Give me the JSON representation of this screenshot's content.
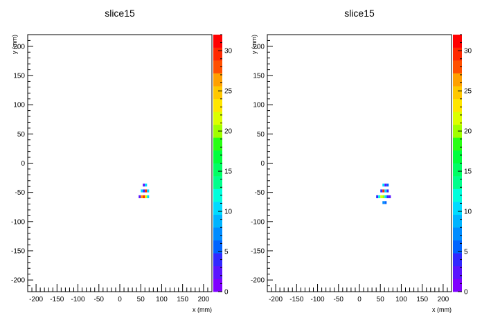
{
  "chart_data": [
    {
      "type": "heatmap",
      "title": "slice15",
      "xlabel": "x (mm)",
      "ylabel": "y (mm)",
      "xlim": [
        -220,
        220
      ],
      "ylim": [
        -220,
        220
      ],
      "x_ticks": [
        -200,
        -150,
        -100,
        -50,
        0,
        50,
        100,
        150,
        200
      ],
      "y_ticks": [
        -200,
        -150,
        -100,
        -50,
        0,
        50,
        100,
        150,
        200
      ],
      "colorbar": {
        "min": 0,
        "max": 32,
        "ticks": [
          0,
          5,
          10,
          15,
          20,
          25,
          30
        ]
      },
      "cell_size": 5,
      "cells": [
        {
          "x": 57.5,
          "y": -37.5,
          "v": 3
        },
        {
          "x": 62.5,
          "y": -37.5,
          "v": 10
        },
        {
          "x": 52.5,
          "y": -47.5,
          "v": 10
        },
        {
          "x": 57.5,
          "y": -47.5,
          "v": 4
        },
        {
          "x": 62.5,
          "y": -47.5,
          "v": 29
        },
        {
          "x": 67.5,
          "y": -47.5,
          "v": 11
        },
        {
          "x": 47.5,
          "y": -57.5,
          "v": 3
        },
        {
          "x": 52.5,
          "y": -57.5,
          "v": 26
        },
        {
          "x": 57.5,
          "y": -57.5,
          "v": 29
        },
        {
          "x": 62.5,
          "y": -57.5,
          "v": 21
        },
        {
          "x": 67.5,
          "y": -57.5,
          "v": 11
        }
      ]
    },
    {
      "type": "heatmap",
      "title": "slice15",
      "xlabel": "x (mm)",
      "ylabel": "y (mm)",
      "xlim": [
        -220,
        220
      ],
      "ylim": [
        -220,
        220
      ],
      "x_ticks": [
        -200,
        -150,
        -100,
        -50,
        0,
        50,
        100,
        150,
        200
      ],
      "y_ticks": [
        -200,
        -150,
        -100,
        -50,
        0,
        50,
        100,
        150,
        200
      ],
      "colorbar": {
        "min": 0,
        "max": 32,
        "ticks": [
          0,
          5,
          10,
          15,
          20,
          25,
          30
        ]
      },
      "cell_size": 5,
      "cells": [
        {
          "x": 57.5,
          "y": -37.5,
          "v": 10
        },
        {
          "x": 62.5,
          "y": -37.5,
          "v": 3
        },
        {
          "x": 67.5,
          "y": -37.5,
          "v": 5
        },
        {
          "x": 52.5,
          "y": -47.5,
          "v": 4
        },
        {
          "x": 57.5,
          "y": -47.5,
          "v": 29
        },
        {
          "x": 62.5,
          "y": -47.5,
          "v": 11
        },
        {
          "x": 67.5,
          "y": -47.5,
          "v": 4
        },
        {
          "x": 42.5,
          "y": -57.5,
          "v": 4
        },
        {
          "x": 47.5,
          "y": -57.5,
          "v": 12
        },
        {
          "x": 52.5,
          "y": -57.5,
          "v": 21
        },
        {
          "x": 57.5,
          "y": -57.5,
          "v": 20
        },
        {
          "x": 62.5,
          "y": -57.5,
          "v": 11
        },
        {
          "x": 67.5,
          "y": -57.5,
          "v": 4
        },
        {
          "x": 72.5,
          "y": -57.5,
          "v": 3
        },
        {
          "x": 57.5,
          "y": -67.5,
          "v": 7
        },
        {
          "x": 62.5,
          "y": -67.5,
          "v": 6
        }
      ]
    }
  ]
}
